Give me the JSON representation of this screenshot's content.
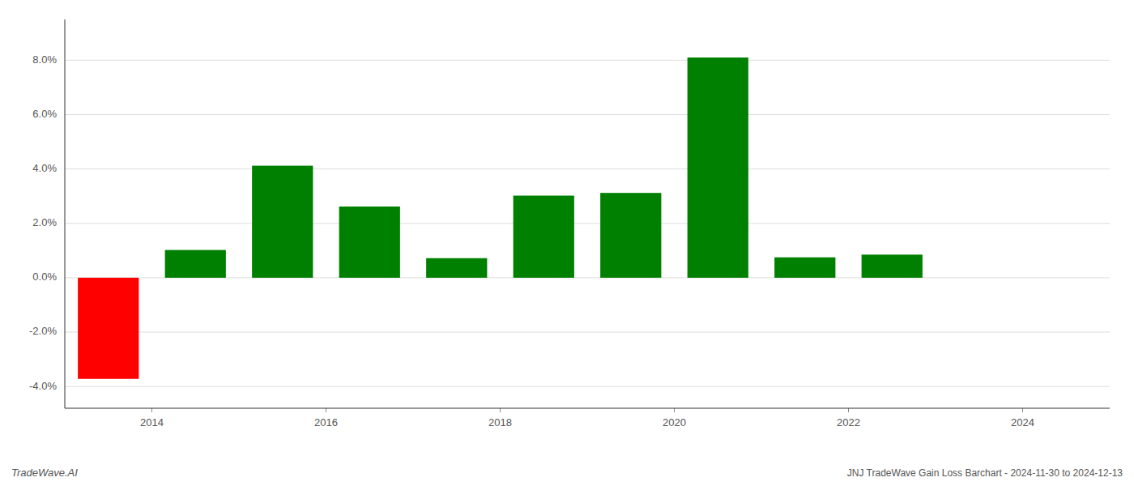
{
  "chart_data": {
    "type": "bar",
    "title": "JNJ TradeWave Gain Loss Barchart - 2024-11-30 to 2024-12-13",
    "annotations": [
      "TradeWave.AI"
    ],
    "x": [
      2013.5,
      2014.5,
      2015.5,
      2016.5,
      2017.5,
      2018.5,
      2019.5,
      2020.5,
      2021.5,
      2022.5
    ],
    "values": [
      -3.72,
      1.02,
      4.12,
      2.62,
      0.72,
      3.02,
      3.12,
      8.1,
      0.75,
      0.85
    ],
    "colors": [
      "#ff0000",
      "#008000",
      "#008000",
      "#008000",
      "#008000",
      "#008000",
      "#008000",
      "#008000",
      "#008000",
      "#008000"
    ],
    "xlim": [
      2013.0,
      2025.0
    ],
    "xticks": [
      2014,
      2016,
      2018,
      2020,
      2022,
      2024
    ],
    "ylim": [
      -4.8,
      9.5
    ],
    "yticks": [
      {
        "value": -4.0,
        "label": "-4.0%"
      },
      {
        "value": -2.0,
        "label": "-2.0%"
      },
      {
        "value": 0.0,
        "label": "0.0%"
      },
      {
        "value": 2.0,
        "label": "2.0%"
      },
      {
        "value": 4.0,
        "label": "4.0%"
      },
      {
        "value": 6.0,
        "label": "6.0%"
      },
      {
        "value": 8.0,
        "label": "8.0%"
      }
    ],
    "grid": true
  }
}
